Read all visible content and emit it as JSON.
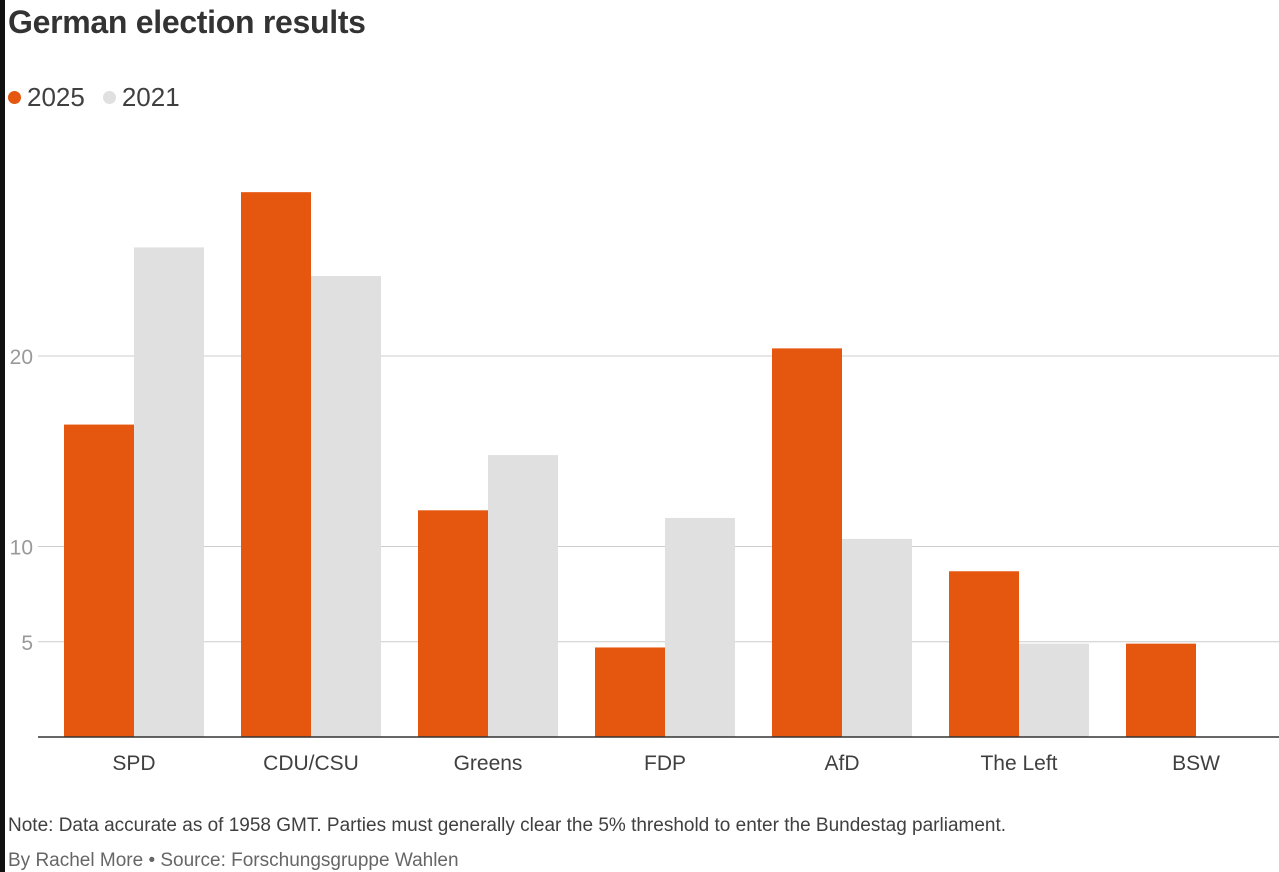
{
  "title": "German election results",
  "legend": [
    {
      "label": "2025",
      "color": "#e5560e"
    },
    {
      "label": "2021",
      "color": "#e0e0e0"
    }
  ],
  "note": "Note: Data accurate as of 1958 GMT. Parties must generally clear the 5% threshold to enter the Bundestag parliament.",
  "byline": "By Rachel More • Source: Forschungsgruppe Wahlen",
  "chart_data": {
    "type": "bar",
    "categories": [
      "SPD",
      "CDU/CSU",
      "Greens",
      "FDP",
      "AfD",
      "The Left",
      "BSW"
    ],
    "series": [
      {
        "name": "2025",
        "color": "#e5560e",
        "values": [
          16.4,
          28.6,
          11.9,
          4.7,
          20.4,
          8.7,
          4.9
        ]
      },
      {
        "name": "2021",
        "color": "#e0e0e0",
        "values": [
          25.7,
          24.2,
          14.8,
          11.5,
          10.4,
          4.9,
          null
        ]
      }
    ],
    "yticks": [
      5,
      10,
      20
    ],
    "ylim": [
      0,
      30
    ],
    "xlabel": "",
    "ylabel": "",
    "grid": true,
    "legend_position": "top-left"
  }
}
